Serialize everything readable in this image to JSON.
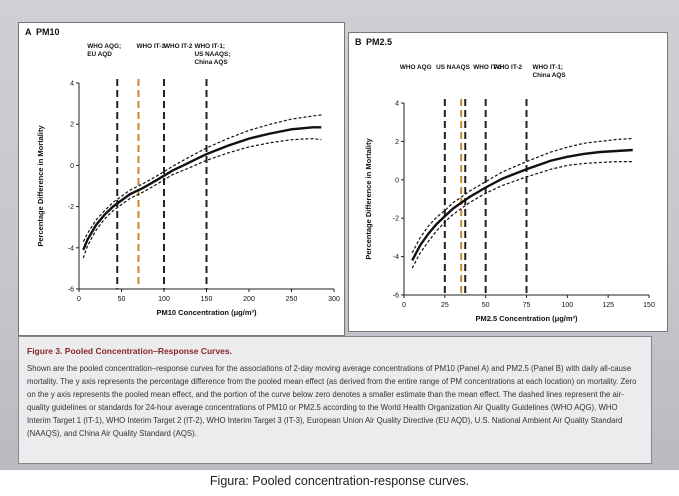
{
  "caption": "Figura: Pooled concentration-response curves.",
  "figure": {
    "title": "Figure 3. Pooled Concentration–Response Curves.",
    "legend_text": "Shown are the pooled concentration–response curves for the associations of 2-day moving average concentrations of PM10 (Panel A) and PM2.5 (Panel B) with daily all-cause mortality. The y axis represents the percentage difference from the pooled mean effect (as derived from the entire range of PM concentrations at each location) on mortality. Zero on the y axis represents the pooled mean effect, and the portion of the curve below zero denotes a smaller estimate than the mean effect. The dashed lines represent the air-quality guidelines or standards for 24-hour average concentrations of PM10 or PM2.5 according to the World Health Organization Air Quality Guidelines (WHO AQG), WHO Interim Target 1 (IT-1), WHO Interim Target 2 (IT-2), WHO Interim Target 3 (IT-3), European Union Air Quality Directive (EU AQD), U.S. National Ambient Air Quality Standard (NAAQS), and China Air Quality Standard (AQS)."
  },
  "colors": {
    "curve": "#111111",
    "guide": "#222222",
    "guide_highlight": "#c98a2b",
    "title": "#8a2525"
  },
  "chart_data": [
    {
      "type": "line",
      "panel_label": "A",
      "title": "PM10",
      "xlabel": "PM10 Concentration (μg/m³)",
      "ylabel": "Percentage Difference in Mortality",
      "xlim": [
        0,
        300
      ],
      "ylim": [
        -6,
        4
      ],
      "xticks": [
        0,
        50,
        100,
        150,
        200,
        250,
        300
      ],
      "yticks": [
        -6,
        -4,
        -2,
        0,
        2,
        4
      ],
      "series": [
        {
          "role": "estimate",
          "x": [
            5,
            10,
            20,
            30,
            40,
            50,
            60,
            75,
            90,
            100,
            110,
            125,
            150,
            175,
            200,
            225,
            250,
            275,
            285
          ],
          "y": [
            -4.1,
            -3.6,
            -2.9,
            -2.4,
            -2.0,
            -1.7,
            -1.4,
            -1.1,
            -0.75,
            -0.5,
            -0.25,
            0.05,
            0.55,
            0.95,
            1.3,
            1.55,
            1.75,
            1.85,
            1.85
          ]
        },
        {
          "role": "upper",
          "x": [
            5,
            10,
            20,
            30,
            40,
            50,
            60,
            75,
            90,
            100,
            110,
            125,
            150,
            175,
            200,
            225,
            250,
            275,
            285
          ],
          "y": [
            -3.7,
            -3.3,
            -2.65,
            -2.2,
            -1.8,
            -1.5,
            -1.2,
            -0.9,
            -0.55,
            -0.3,
            -0.05,
            0.3,
            0.85,
            1.3,
            1.7,
            2.0,
            2.25,
            2.4,
            2.45
          ]
        },
        {
          "role": "lower",
          "x": [
            5,
            10,
            20,
            30,
            40,
            50,
            60,
            75,
            90,
            100,
            110,
            125,
            150,
            175,
            200,
            225,
            250,
            275,
            285
          ],
          "y": [
            -4.5,
            -3.9,
            -3.15,
            -2.6,
            -2.2,
            -1.9,
            -1.6,
            -1.3,
            -0.95,
            -0.7,
            -0.45,
            -0.2,
            0.25,
            0.6,
            0.9,
            1.1,
            1.25,
            1.3,
            1.25
          ]
        }
      ],
      "guidelines": [
        {
          "x": 45,
          "labels": [
            "WHO AQG;",
            "EU AQD"
          ],
          "highlight": false
        },
        {
          "x": 70,
          "labels": [
            "WHO IT-3"
          ],
          "highlight": true
        },
        {
          "x": 100,
          "labels": [
            "WHO IT-2"
          ],
          "highlight": false
        },
        {
          "x": 150,
          "labels": [
            "WHO IT-1;",
            "US NAAQS;",
            "China AQS"
          ],
          "highlight": false
        }
      ]
    },
    {
      "type": "line",
      "panel_label": "B",
      "title": "PM2.5",
      "xlabel": "PM2.5 Concentration (μg/m³)",
      "ylabel": "Percentage Difference in Mortality",
      "xlim": [
        0,
        150
      ],
      "ylim": [
        -6,
        4
      ],
      "xticks": [
        0,
        25,
        50,
        75,
        100,
        125,
        150
      ],
      "yticks": [
        -6,
        -4,
        -2,
        0,
        2,
        4
      ],
      "series": [
        {
          "role": "estimate",
          "x": [
            5,
            10,
            15,
            20,
            25,
            30,
            35,
            40,
            50,
            60,
            75,
            90,
            100,
            110,
            120,
            130,
            140
          ],
          "y": [
            -4.2,
            -3.4,
            -2.8,
            -2.3,
            -1.9,
            -1.5,
            -1.2,
            -0.9,
            -0.4,
            0.05,
            0.55,
            1.0,
            1.2,
            1.35,
            1.45,
            1.5,
            1.55
          ]
        },
        {
          "role": "upper",
          "x": [
            5,
            10,
            15,
            20,
            25,
            30,
            35,
            40,
            50,
            60,
            75,
            90,
            100,
            110,
            120,
            130,
            140
          ],
          "y": [
            -3.8,
            -3.0,
            -2.4,
            -1.95,
            -1.6,
            -1.2,
            -0.9,
            -0.6,
            -0.1,
            0.4,
            0.95,
            1.45,
            1.7,
            1.9,
            2.0,
            2.1,
            2.15
          ]
        },
        {
          "role": "lower",
          "x": [
            5,
            10,
            15,
            20,
            25,
            30,
            35,
            40,
            50,
            60,
            75,
            90,
            100,
            110,
            120,
            130,
            140
          ],
          "y": [
            -4.6,
            -3.8,
            -3.2,
            -2.65,
            -2.2,
            -1.8,
            -1.5,
            -1.2,
            -0.7,
            -0.3,
            0.15,
            0.55,
            0.75,
            0.85,
            0.9,
            0.95,
            0.95
          ]
        }
      ],
      "guidelines": [
        {
          "x": 25,
          "labels": [
            "WHO AQG"
          ],
          "highlight": false
        },
        {
          "x": 35,
          "labels": [
            "US NAAQS"
          ],
          "highlight": true
        },
        {
          "x": 37.5,
          "labels": [
            "WHO IT-3"
          ],
          "highlight": false
        },
        {
          "x": 50,
          "labels": [
            "WHO IT-2"
          ],
          "highlight": false
        },
        {
          "x": 75,
          "labels": [
            "WHO IT-1;",
            "China AQS"
          ],
          "highlight": false
        }
      ]
    }
  ]
}
